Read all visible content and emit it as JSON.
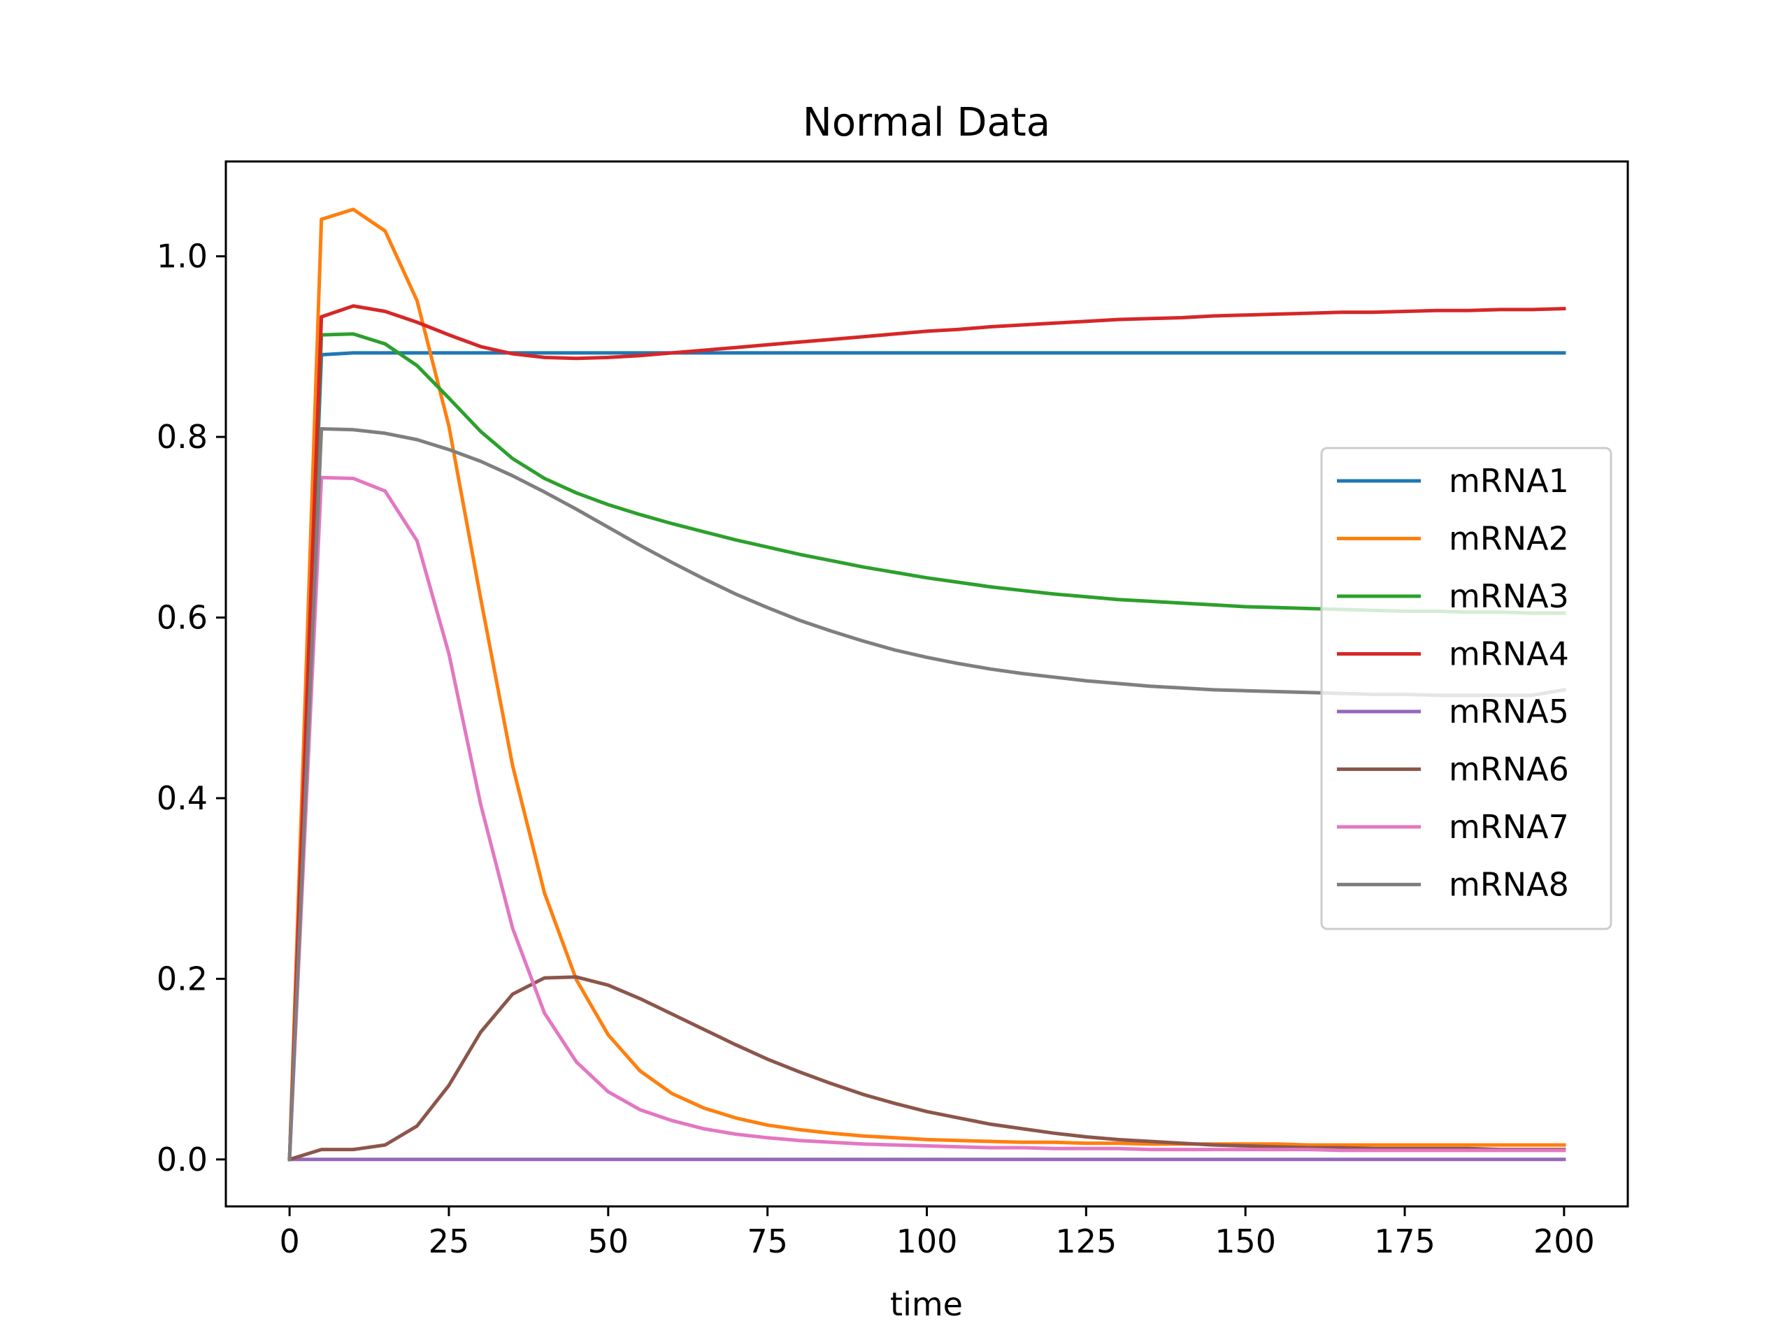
{
  "chart_data": {
    "type": "line",
    "title": "Normal Data",
    "xlabel": "time",
    "ylabel": "",
    "xlim": [
      -10,
      210
    ],
    "ylim": [
      -0.052,
      1.105
    ],
    "xticks": [
      0,
      25,
      50,
      75,
      100,
      125,
      150,
      175,
      200
    ],
    "xtick_labels": [
      "0",
      "25",
      "50",
      "75",
      "100",
      "125",
      "150",
      "175",
      "200"
    ],
    "yticks": [
      0.0,
      0.2,
      0.4,
      0.6,
      0.8,
      1.0
    ],
    "ytick_labels": [
      "0.0",
      "0.2",
      "0.4",
      "0.6",
      "0.8",
      "1.0"
    ],
    "grid": false,
    "legend_position": "right",
    "x": [
      0,
      5,
      10,
      15,
      20,
      25,
      30,
      35,
      40,
      45,
      50,
      55,
      60,
      65,
      70,
      75,
      80,
      85,
      90,
      95,
      100,
      105,
      110,
      115,
      120,
      125,
      130,
      135,
      140,
      145,
      150,
      155,
      160,
      165,
      170,
      175,
      180,
      185,
      190,
      195,
      200
    ],
    "series": [
      {
        "name": "mRNA1",
        "color": "#1f77b4",
        "values": [
          0,
          0.891,
          0.893,
          0.893,
          0.893,
          0.893,
          0.893,
          0.893,
          0.893,
          0.893,
          0.893,
          0.893,
          0.893,
          0.893,
          0.893,
          0.893,
          0.893,
          0.893,
          0.893,
          0.893,
          0.893,
          0.893,
          0.893,
          0.893,
          0.893,
          0.893,
          0.893,
          0.893,
          0.893,
          0.893,
          0.893,
          0.893,
          0.893,
          0.893,
          0.893,
          0.893,
          0.893,
          0.893,
          0.893,
          0.893,
          0.893
        ]
      },
      {
        "name": "mRNA2",
        "color": "#ff7f0e",
        "values": [
          0,
          1.041,
          1.052,
          1.028,
          0.951,
          0.812,
          0.621,
          0.436,
          0.295,
          0.199,
          0.138,
          0.098,
          0.073,
          0.057,
          0.046,
          0.038,
          0.033,
          0.029,
          0.026,
          0.024,
          0.022,
          0.021,
          0.02,
          0.019,
          0.019,
          0.018,
          0.018,
          0.017,
          0.017,
          0.017,
          0.017,
          0.017,
          0.016,
          0.016,
          0.016,
          0.016,
          0.016,
          0.016,
          0.016,
          0.016,
          0.016
        ]
      },
      {
        "name": "mRNA3",
        "color": "#2ca02c",
        "values": [
          0,
          0.913,
          0.914,
          0.903,
          0.879,
          0.843,
          0.806,
          0.776,
          0.754,
          0.738,
          0.725,
          0.714,
          0.704,
          0.695,
          0.686,
          0.678,
          0.67,
          0.663,
          0.656,
          0.65,
          0.644,
          0.639,
          0.634,
          0.63,
          0.626,
          0.623,
          0.62,
          0.618,
          0.616,
          0.614,
          0.612,
          0.611,
          0.61,
          0.609,
          0.608,
          0.607,
          0.607,
          0.606,
          0.606,
          0.605,
          0.605
        ]
      },
      {
        "name": "mRNA4",
        "color": "#d62728",
        "values": [
          0,
          0.933,
          0.945,
          0.939,
          0.927,
          0.913,
          0.9,
          0.892,
          0.888,
          0.887,
          0.888,
          0.89,
          0.893,
          0.896,
          0.899,
          0.902,
          0.905,
          0.908,
          0.911,
          0.914,
          0.917,
          0.919,
          0.922,
          0.924,
          0.926,
          0.928,
          0.93,
          0.931,
          0.932,
          0.934,
          0.935,
          0.936,
          0.937,
          0.938,
          0.938,
          0.939,
          0.94,
          0.94,
          0.941,
          0.941,
          0.942
        ]
      },
      {
        "name": "mRNA5",
        "color": "#9467bd",
        "values": [
          0,
          0,
          0,
          0,
          0,
          0,
          0,
          0,
          0,
          0,
          0,
          0,
          0,
          0,
          0,
          0,
          0,
          0,
          0,
          0,
          0,
          0,
          0,
          0,
          0,
          0,
          0,
          0,
          0,
          0,
          0,
          0,
          0,
          0,
          0,
          0,
          0,
          0,
          0,
          0,
          0
        ]
      },
      {
        "name": "mRNA6",
        "color": "#8c564b",
        "values": [
          0,
          0.011,
          0.011,
          0.016,
          0.037,
          0.082,
          0.141,
          0.183,
          0.201,
          0.202,
          0.193,
          0.178,
          0.161,
          0.144,
          0.127,
          0.111,
          0.097,
          0.084,
          0.072,
          0.062,
          0.053,
          0.046,
          0.039,
          0.034,
          0.029,
          0.025,
          0.022,
          0.02,
          0.018,
          0.016,
          0.015,
          0.014,
          0.013,
          0.013,
          0.012,
          0.012,
          0.012,
          0.012,
          0.011,
          0.011,
          0.011
        ]
      },
      {
        "name": "mRNA7",
        "color": "#e377c2",
        "values": [
          0,
          0.755,
          0.754,
          0.74,
          0.685,
          0.56,
          0.393,
          0.256,
          0.162,
          0.108,
          0.075,
          0.055,
          0.043,
          0.034,
          0.028,
          0.024,
          0.021,
          0.019,
          0.017,
          0.016,
          0.015,
          0.014,
          0.013,
          0.013,
          0.012,
          0.012,
          0.012,
          0.011,
          0.011,
          0.011,
          0.011,
          0.011,
          0.011,
          0.01,
          0.01,
          0.01,
          0.01,
          0.01,
          0.01,
          0.01,
          0.01
        ]
      },
      {
        "name": "mRNA8",
        "color": "#7f7f7f",
        "values": [
          0,
          0.809,
          0.808,
          0.804,
          0.797,
          0.786,
          0.773,
          0.757,
          0.739,
          0.72,
          0.7,
          0.68,
          0.661,
          0.643,
          0.626,
          0.611,
          0.597,
          0.585,
          0.574,
          0.564,
          0.556,
          0.549,
          0.543,
          0.538,
          0.534,
          0.53,
          0.527,
          0.524,
          0.522,
          0.52,
          0.519,
          0.518,
          0.517,
          0.516,
          0.515,
          0.515,
          0.514,
          0.514,
          0.514,
          0.514,
          0.52
        ]
      }
    ]
  }
}
